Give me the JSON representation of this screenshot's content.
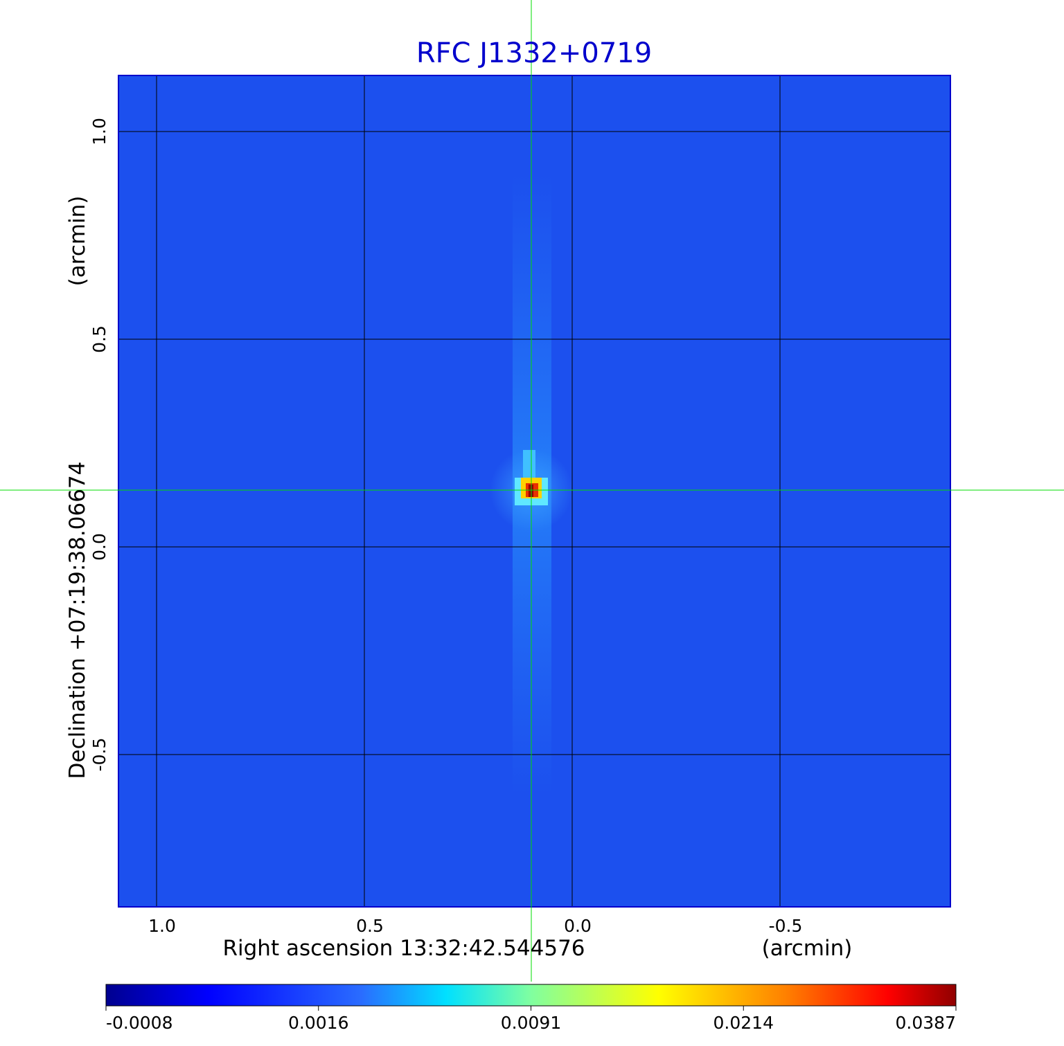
{
  "chart_data": {
    "type": "image",
    "title": "RFC J1332+0719",
    "x_label": "Right ascension  13:32:42.544576",
    "x_unit": "(arcmin)",
    "y_label": "Declination  +07:19:38.06674",
    "y_unit": "(arcmin)",
    "xlim": [
      1.0917,
      -0.91
    ],
    "ylim": [
      -0.8667,
      1.135
    ],
    "xticks": [
      {
        "value": 1,
        "label": "1.0"
      },
      0.5,
      {
        "value": 0,
        "label": "0.0"
      },
      -0.5
    ],
    "yticks": [
      {
        "value": -0.5,
        "label": "-0.5"
      },
      {
        "value": 0,
        "label": "0.0"
      },
      0.5,
      {
        "value": 1,
        "label": "1.0"
      }
    ],
    "grid": true,
    "colormap": "jet",
    "colorbar_ticks": [
      -0.0008,
      0.0016,
      0.0091,
      0.0214,
      0.0387
    ]
  }
}
